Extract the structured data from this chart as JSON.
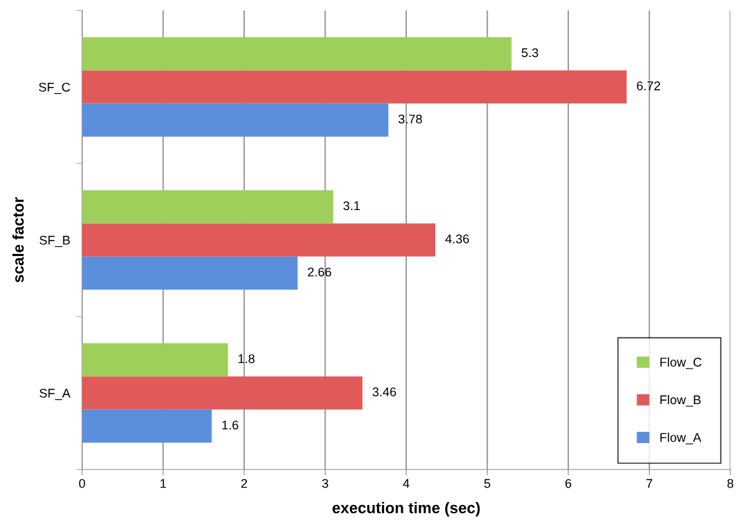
{
  "chart_data": {
    "type": "bar",
    "orientation": "horizontal",
    "xlabel": "execution time (sec)",
    "ylabel": "scale factor",
    "categories": [
      "SF_C",
      "SF_B",
      "SF_A"
    ],
    "series": [
      {
        "name": "Flow_A",
        "color": "#5b8fdc",
        "values": [
          3.78,
          2.66,
          1.6
        ]
      },
      {
        "name": "Flow_B",
        "color": "#e05a5a",
        "values": [
          6.72,
          4.36,
          3.46
        ]
      },
      {
        "name": "Flow_C",
        "color": "#9dcf5a",
        "values": [
          5.3,
          3.1,
          1.8
        ]
      }
    ],
    "xlim": [
      0,
      8
    ],
    "xticks": [
      0,
      1,
      2,
      3,
      4,
      5,
      6,
      7,
      8
    ],
    "grid": "x",
    "legend": "bottom right",
    "data_labels": true
  }
}
